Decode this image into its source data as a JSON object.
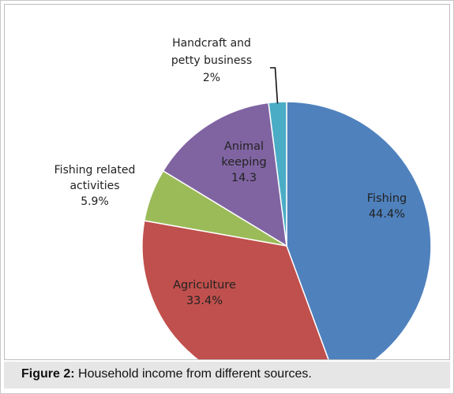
{
  "caption": {
    "figure_label": "Figure 2:",
    "text": " Household income from different sources."
  },
  "chart_data": {
    "type": "pie",
    "title": "",
    "start_angle_deg": 0,
    "direction": "clockwise",
    "slices": [
      {
        "name": "Fishing",
        "value": 44.4,
        "label_lines": [
          "Fishing",
          "44.4%"
        ],
        "color": "#4f81bd",
        "label_inside": true
      },
      {
        "name": "Agriculture",
        "value": 33.4,
        "label_lines": [
          "Agriculture",
          "33.4%"
        ],
        "color": "#c0504d",
        "label_inside": true
      },
      {
        "name": "Fishing related activities",
        "value": 5.9,
        "label_lines": [
          "Fishing related",
          "activities",
          "5.9%"
        ],
        "color": "#9bbb59",
        "label_inside": false
      },
      {
        "name": "Animal keeping",
        "value": 14.3,
        "label_lines": [
          "Animal",
          "keeping",
          "14.3"
        ],
        "color": "#8064a2",
        "label_inside": true
      },
      {
        "name": "Handcraft and petty business",
        "value": 2,
        "label_lines": [
          "Handcraft and",
          "petty business",
          "2%"
        ],
        "color": "#4bacc6",
        "label_inside": false
      }
    ]
  }
}
